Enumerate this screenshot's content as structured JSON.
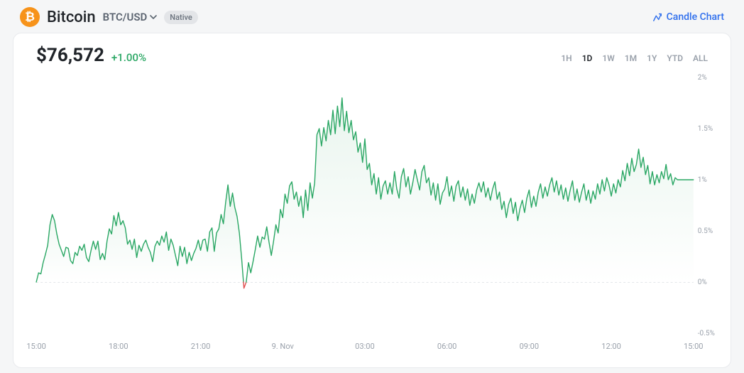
{
  "header": {
    "coin_symbol_glyph": "₿",
    "coin_icon_bg": "#f7931a",
    "coin_name": "Bitcoin",
    "pair": "BTC/USD",
    "badge": "Native",
    "candle_link": "Candle Chart",
    "candle_link_color": "#2f6fed"
  },
  "price": {
    "value": "$76,572",
    "change": "+1.00%",
    "change_color": "#2aa764"
  },
  "ranges": [
    "1H",
    "1D",
    "1W",
    "1M",
    "1Y",
    "YTD",
    "ALL"
  ],
  "active_range": "1D",
  "chart": {
    "type": "area-line",
    "line_color": "#2aa764",
    "neg_line_color": "#e04f4f",
    "area_top_color": "#e9f5ee",
    "area_bottom_color": "#ffffff",
    "zero_line_color": "#c9cdd3",
    "zero_line_dash": "3,3",
    "background_color": "#ffffff",
    "ylim": [
      -0.5,
      2.0
    ],
    "y_ticks": [
      -0.5,
      0,
      0.5,
      1,
      1.5,
      2
    ],
    "y_tick_labels": [
      "-0.5%",
      "0%",
      "0.5%",
      "1%",
      "1.5%",
      "2%"
    ],
    "x_span": [
      0,
      288
    ],
    "x_ticks": [
      0,
      36,
      72,
      108,
      144,
      180,
      216,
      252,
      288
    ],
    "x_tick_labels": [
      "15:00",
      "18:00",
      "21:00",
      "9. Nov",
      "03:00",
      "06:00",
      "09:00",
      "12:00",
      "15:00"
    ],
    "label_fontsize": 11,
    "line_width": 1.4,
    "series": [
      0.0,
      0.09,
      0.08,
      0.19,
      0.27,
      0.36,
      0.56,
      0.66,
      0.6,
      0.47,
      0.37,
      0.31,
      0.25,
      0.34,
      0.33,
      0.21,
      0.18,
      0.29,
      0.26,
      0.35,
      0.31,
      0.37,
      0.24,
      0.2,
      0.31,
      0.4,
      0.32,
      0.4,
      0.22,
      0.28,
      0.22,
      0.4,
      0.52,
      0.47,
      0.65,
      0.55,
      0.68,
      0.56,
      0.6,
      0.53,
      0.37,
      0.41,
      0.32,
      0.42,
      0.24,
      0.36,
      0.3,
      0.37,
      0.41,
      0.34,
      0.29,
      0.2,
      0.35,
      0.4,
      0.36,
      0.45,
      0.39,
      0.49,
      0.31,
      0.42,
      0.36,
      0.26,
      0.16,
      0.35,
      0.25,
      0.34,
      0.18,
      0.29,
      0.21,
      0.28,
      0.33,
      0.41,
      0.31,
      0.41,
      0.42,
      0.3,
      0.49,
      0.53,
      0.3,
      0.48,
      0.52,
      0.66,
      0.57,
      0.78,
      0.95,
      0.74,
      0.87,
      0.73,
      0.64,
      0.48,
      0.23,
      -0.06,
      0.0,
      0.19,
      0.09,
      0.2,
      0.32,
      0.45,
      0.34,
      0.44,
      0.42,
      0.54,
      0.39,
      0.26,
      0.4,
      0.56,
      0.48,
      0.71,
      0.63,
      0.86,
      0.77,
      0.94,
      0.98,
      0.81,
      0.88,
      0.74,
      0.84,
      0.63,
      0.9,
      0.7,
      0.97,
      0.82,
      0.97,
      1.44,
      1.5,
      1.33,
      1.51,
      1.38,
      1.58,
      1.44,
      1.68,
      1.45,
      1.72,
      1.52,
      1.8,
      1.48,
      1.67,
      1.46,
      1.58,
      1.39,
      1.47,
      1.27,
      1.36,
      1.17,
      1.4,
      1.1,
      1.16,
      0.95,
      1.06,
      0.86,
      1.02,
      0.81,
      0.94,
      0.99,
      0.86,
      0.97,
      0.86,
      1.08,
      0.91,
      0.82,
      1.03,
      1.11,
      0.93,
      1.03,
      0.86,
      0.97,
      1.1,
      1.0,
      0.9,
      1.08,
      1.14,
      0.97,
      1.02,
      0.85,
      0.97,
      0.8,
      0.96,
      0.76,
      0.87,
      0.91,
      1.03,
      0.84,
      0.94,
      0.79,
      0.94,
      0.99,
      0.83,
      0.93,
      0.8,
      0.91,
      0.75,
      0.86,
      0.77,
      0.9,
      0.97,
      0.88,
      0.98,
      0.83,
      0.92,
      0.8,
      0.91,
      0.98,
      0.81,
      0.88,
      0.71,
      0.79,
      0.63,
      0.76,
      0.82,
      0.67,
      0.78,
      0.6,
      0.72,
      0.8,
      0.68,
      0.82,
      0.9,
      0.73,
      0.84,
      0.74,
      0.88,
      0.96,
      0.82,
      0.93,
      0.84,
      0.95,
      1.02,
      0.88,
      0.99,
      0.85,
      0.95,
      0.81,
      0.92,
      0.79,
      0.9,
      0.99,
      0.8,
      0.91,
      0.78,
      0.88,
      0.96,
      0.8,
      0.9,
      0.77,
      0.89,
      0.81,
      0.96,
      0.86,
      1.0,
      0.89,
      1.02,
      0.95,
      0.84,
      0.96,
      0.87,
      1.0,
      0.93,
      1.09,
      0.99,
      1.16,
      1.04,
      1.21,
      1.08,
      1.15,
      1.3,
      1.12,
      1.22,
      1.05,
      1.14,
      0.96,
      1.08,
      0.95,
      1.05,
      0.97,
      1.08,
      1.01,
      1.15,
      1.0,
      1.06,
      0.95,
      1.02,
      1.0,
      1.0,
      1.0,
      1.0,
      1.0,
      1.0,
      1.0,
      1.0
    ]
  }
}
